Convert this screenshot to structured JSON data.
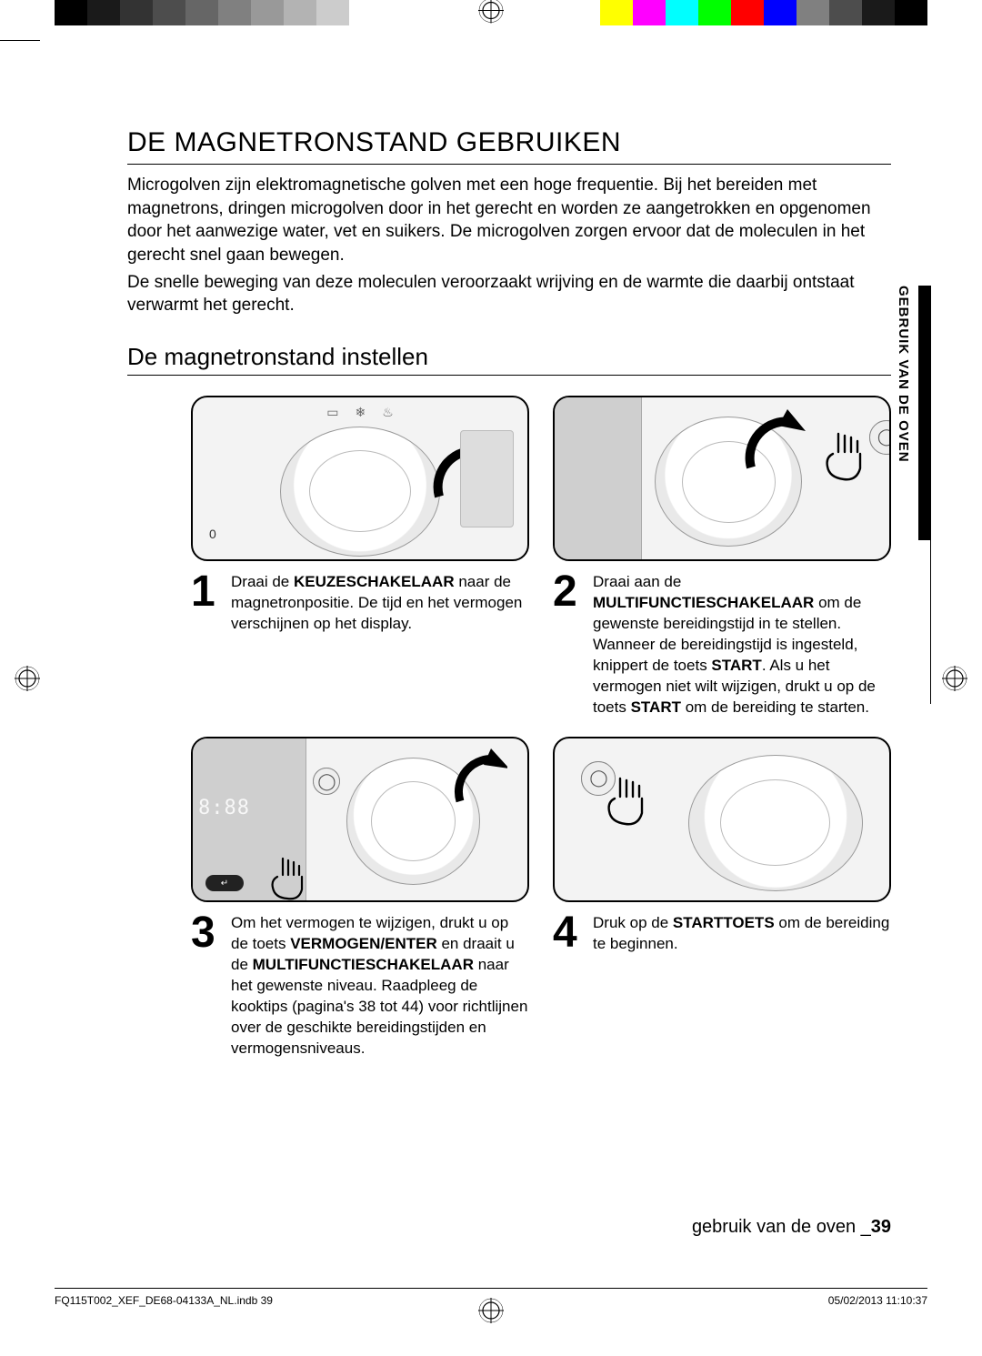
{
  "registration": {
    "grayscale": [
      "#000000",
      "#1a1a1a",
      "#333333",
      "#4d4d4d",
      "#666666",
      "#808080",
      "#999999",
      "#b3b3b3",
      "#cccccc",
      "#ffffff"
    ],
    "colors": [
      "#ffff00",
      "#ff00ff",
      "#00ffff",
      "#00ff00",
      "#ff0000",
      "#0000ff",
      "#808080",
      "#4d4d4d",
      "#1a1a1a",
      "#000000"
    ]
  },
  "side_tab": "GEBRUIK VAN DE OVEN",
  "title": "DE MAGNETRONSTAND GEBRUIKEN",
  "para1": "Microgolven zijn elektromagnetische golven met een hoge frequentie. Bij het bereiden met magnetrons, dringen microgolven door in het gerecht en worden ze aangetrokken en opgenomen door het aanwezige water, vet en suikers. De microgolven zorgen ervoor dat de moleculen in het gerecht snel gaan bewegen.",
  "para2": "De snelle beweging van deze moleculen veroorzaakt wrijving en de warmte die daarbij ontstaat verwarmt het gerecht.",
  "subheading": "De magnetronstand instellen",
  "steps": [
    {
      "num": "1",
      "html": "Draai de <b>KEUZESCHAKELAAR</b> naar de magnetronpositie. De tijd en het vermogen verschijnen op het display."
    },
    {
      "num": "2",
      "html": "Draai aan de <b>MULTIFUNCTIESCHAKELAAR</b> om de gewenste bereidingstijd in te stellen. Wanneer de bereidingstijd is ingesteld, knippert de toets <b>START</b>. Als u het vermogen niet wilt wijzigen, drukt u op de toets <b>START</b> om de bereiding te starten."
    },
    {
      "num": "3",
      "html": "Om het vermogen te wijzigen, drukt u op de toets <b>VERMOGEN/ENTER</b> en draait u de <b>MULTIFUNCTIESCHAKELAAR</b> naar het gewenste niveau. Raadpleeg de kooktips (pagina's 38 tot 44) voor richtlijnen over de geschikte bereidingstijden en vermogensniveaus."
    },
    {
      "num": "4",
      "html": "Druk op de <b>STARTTOETS</b> om de bereiding te beginnen."
    }
  ],
  "illus": {
    "zero_label": "0",
    "display_text": "8:88",
    "btn_start_glyph": "◇",
    "btn_stop_glyph": "◯"
  },
  "footer_running": {
    "label": "gebruik van de oven _",
    "page": "39"
  },
  "print_footer": {
    "file": "FQ115T002_XEF_DE68-04133A_NL.indb   39",
    "stamp": "05/02/2013   11:10:37"
  }
}
